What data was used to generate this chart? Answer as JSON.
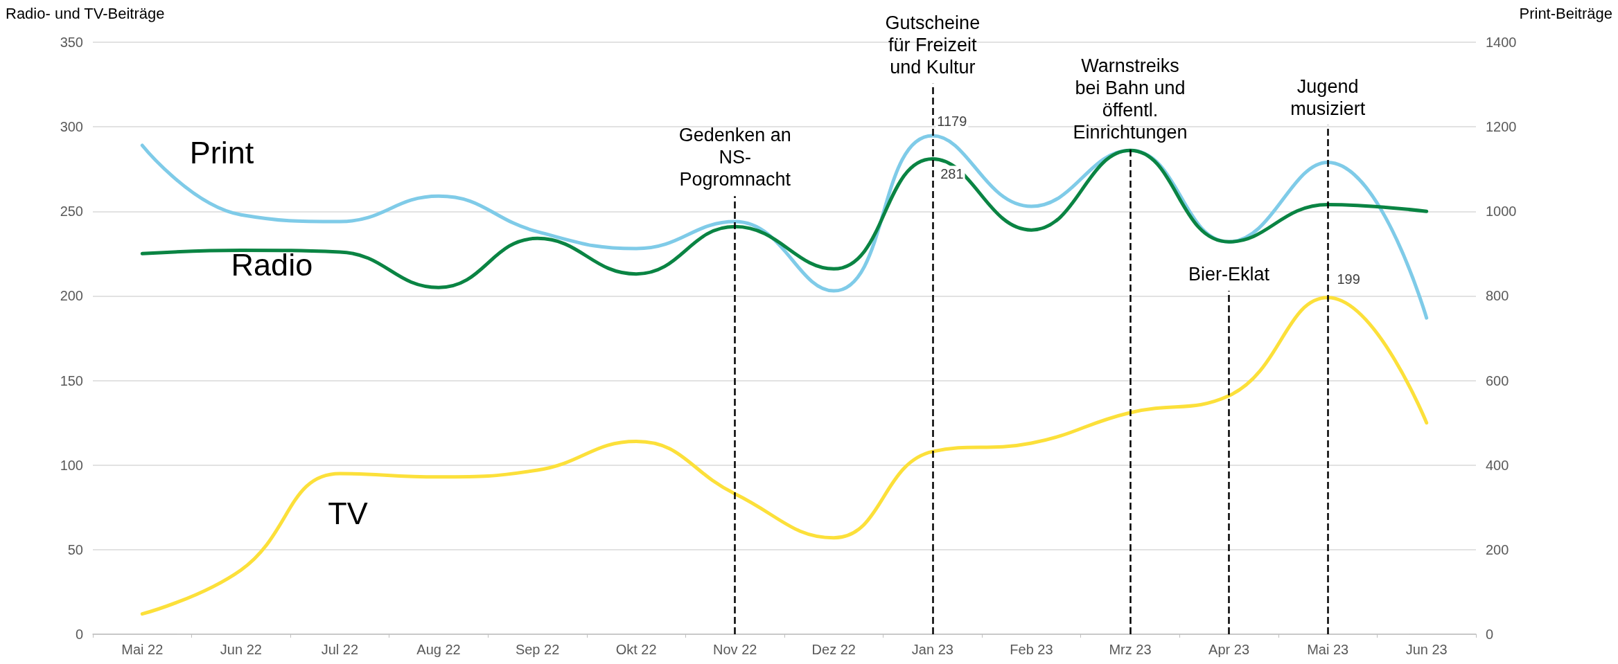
{
  "chart_data": {
    "type": "line",
    "ylabel": "Radio- und TV-Beiträge",
    "y2label": "Print-Beiträge",
    "categories": [
      "Mai 22",
      "Jun 22",
      "Jul 22",
      "Aug 22",
      "Sep 22",
      "Okt 22",
      "Nov 22",
      "Dez 22",
      "Jan 23",
      "Feb 23",
      "Mrz 23",
      "Apr 23",
      "Mai 23",
      "Jun 23"
    ],
    "series": [
      {
        "name": "Print",
        "color": "#7fcbe8",
        "axis": "y2",
        "values": [
          1156,
          992,
          976,
          1036,
          952,
          912,
          976,
          812,
          1179,
          1012,
          1144,
          928,
          1116,
          748
        ],
        "value_labels": [
          null,
          null,
          null,
          null,
          null,
          null,
          null,
          null,
          "1179",
          null,
          null,
          null,
          null,
          null
        ]
      },
      {
        "name": "Radio",
        "color": "#0a8443",
        "values": [
          225,
          227,
          226,
          205,
          234,
          213,
          241,
          216,
          281,
          239,
          286,
          232,
          254,
          250
        ],
        "value_labels": [
          null,
          null,
          null,
          null,
          null,
          null,
          null,
          null,
          "281",
          null,
          null,
          null,
          null,
          null
        ]
      },
      {
        "name": "TV",
        "color": "#fce03a",
        "values": [
          12,
          38,
          95,
          93,
          97,
          114,
          83,
          57,
          108,
          113,
          131,
          141,
          199,
          125
        ],
        "value_labels": [
          null,
          null,
          null,
          null,
          null,
          null,
          null,
          null,
          null,
          null,
          null,
          null,
          "199",
          null
        ]
      }
    ],
    "ylim": [
      0,
      350
    ],
    "yticks": [
      0,
      50,
      100,
      150,
      200,
      250,
      300,
      350
    ],
    "y2lim": [
      0,
      1400
    ],
    "y2ticks": [
      0,
      200,
      400,
      600,
      800,
      1000,
      1200,
      1400
    ],
    "grid": "y",
    "legend": false,
    "marker": "none",
    "line_style": "solid",
    "ref_lines": [
      {
        "axis": "x",
        "value": "Nov 22",
        "label": "Gedenken an\nNS-\nPogromnacht",
        "color": "#000000",
        "line_style": "dashed"
      },
      {
        "axis": "x",
        "value": "Jan 23",
        "label": "Gutscheine\nfür Freizeit\nund Kultur",
        "color": "#000000",
        "line_style": "dashed"
      },
      {
        "axis": "x",
        "value": "Mrz 23",
        "label": "Warnstreiks\nbei Bahn und\nöffentl.\nEinrichtungen",
        "color": "#000000",
        "line_style": "dashed"
      },
      {
        "axis": "x",
        "value": "Apr 23",
        "label": "Bier-Eklat",
        "color": "#000000",
        "line_style": "dashed"
      },
      {
        "axis": "x",
        "value": "Mai 23",
        "label": "Jugend\nmusiziert",
        "color": "#000000",
        "line_style": "dashed"
      }
    ]
  }
}
